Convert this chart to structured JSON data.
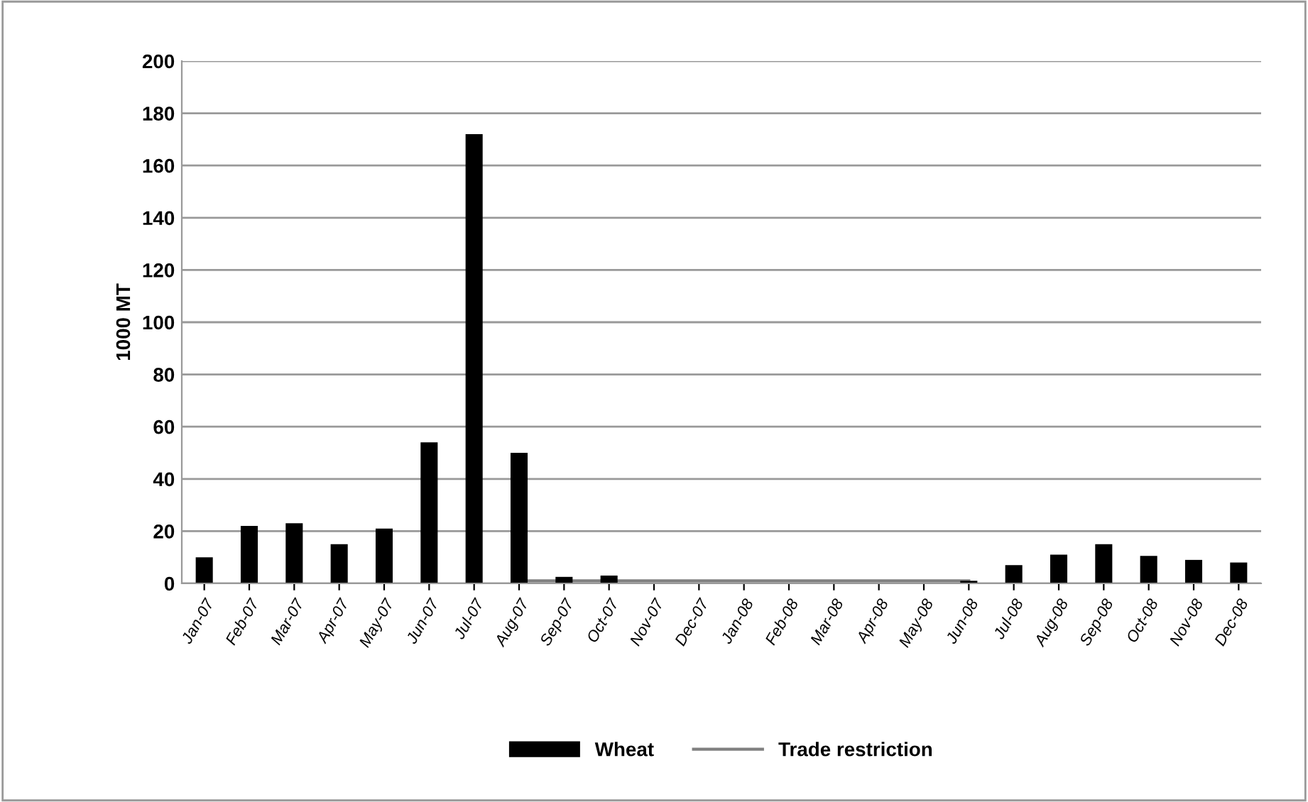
{
  "chart_data": {
    "type": "bar",
    "ylabel": "1000 MT",
    "categories": [
      "Jan-07",
      "Feb-07",
      "Mar-07",
      "Apr-07",
      "May-07",
      "Jun-07",
      "Jul-07",
      "Aug-07",
      "Sep-07",
      "Oct-07",
      "Nov-07",
      "Dec-07",
      "Jan-08",
      "Feb-08",
      "Mar-08",
      "Apr-08",
      "May-08",
      "Jun-08",
      "Jul-08",
      "Aug-08",
      "Sep-08",
      "Oct-08",
      "Nov-08",
      "Dec-08"
    ],
    "series": [
      {
        "name": "Wheat",
        "color": "#000000",
        "values": [
          10,
          22,
          23,
          15,
          21,
          54,
          172,
          50,
          2.5,
          3,
          0,
          0,
          0,
          0,
          0,
          0,
          0,
          1,
          7,
          11,
          15,
          10.5,
          9,
          8
        ]
      },
      {
        "name": "Trade restriction",
        "type": "line",
        "color": "#808080",
        "values": [
          null,
          null,
          null,
          null,
          null,
          null,
          null,
          1,
          1,
          1,
          1,
          1,
          1,
          1,
          1,
          1,
          1,
          1,
          null,
          null,
          null,
          null,
          null,
          null
        ]
      }
    ],
    "ylim": [
      0,
      200
    ],
    "yticks": [
      0,
      20,
      40,
      60,
      80,
      100,
      120,
      140,
      160,
      180,
      200
    ],
    "grid": "y",
    "legend": "bottom",
    "marker": "none",
    "line_style": "solid"
  }
}
